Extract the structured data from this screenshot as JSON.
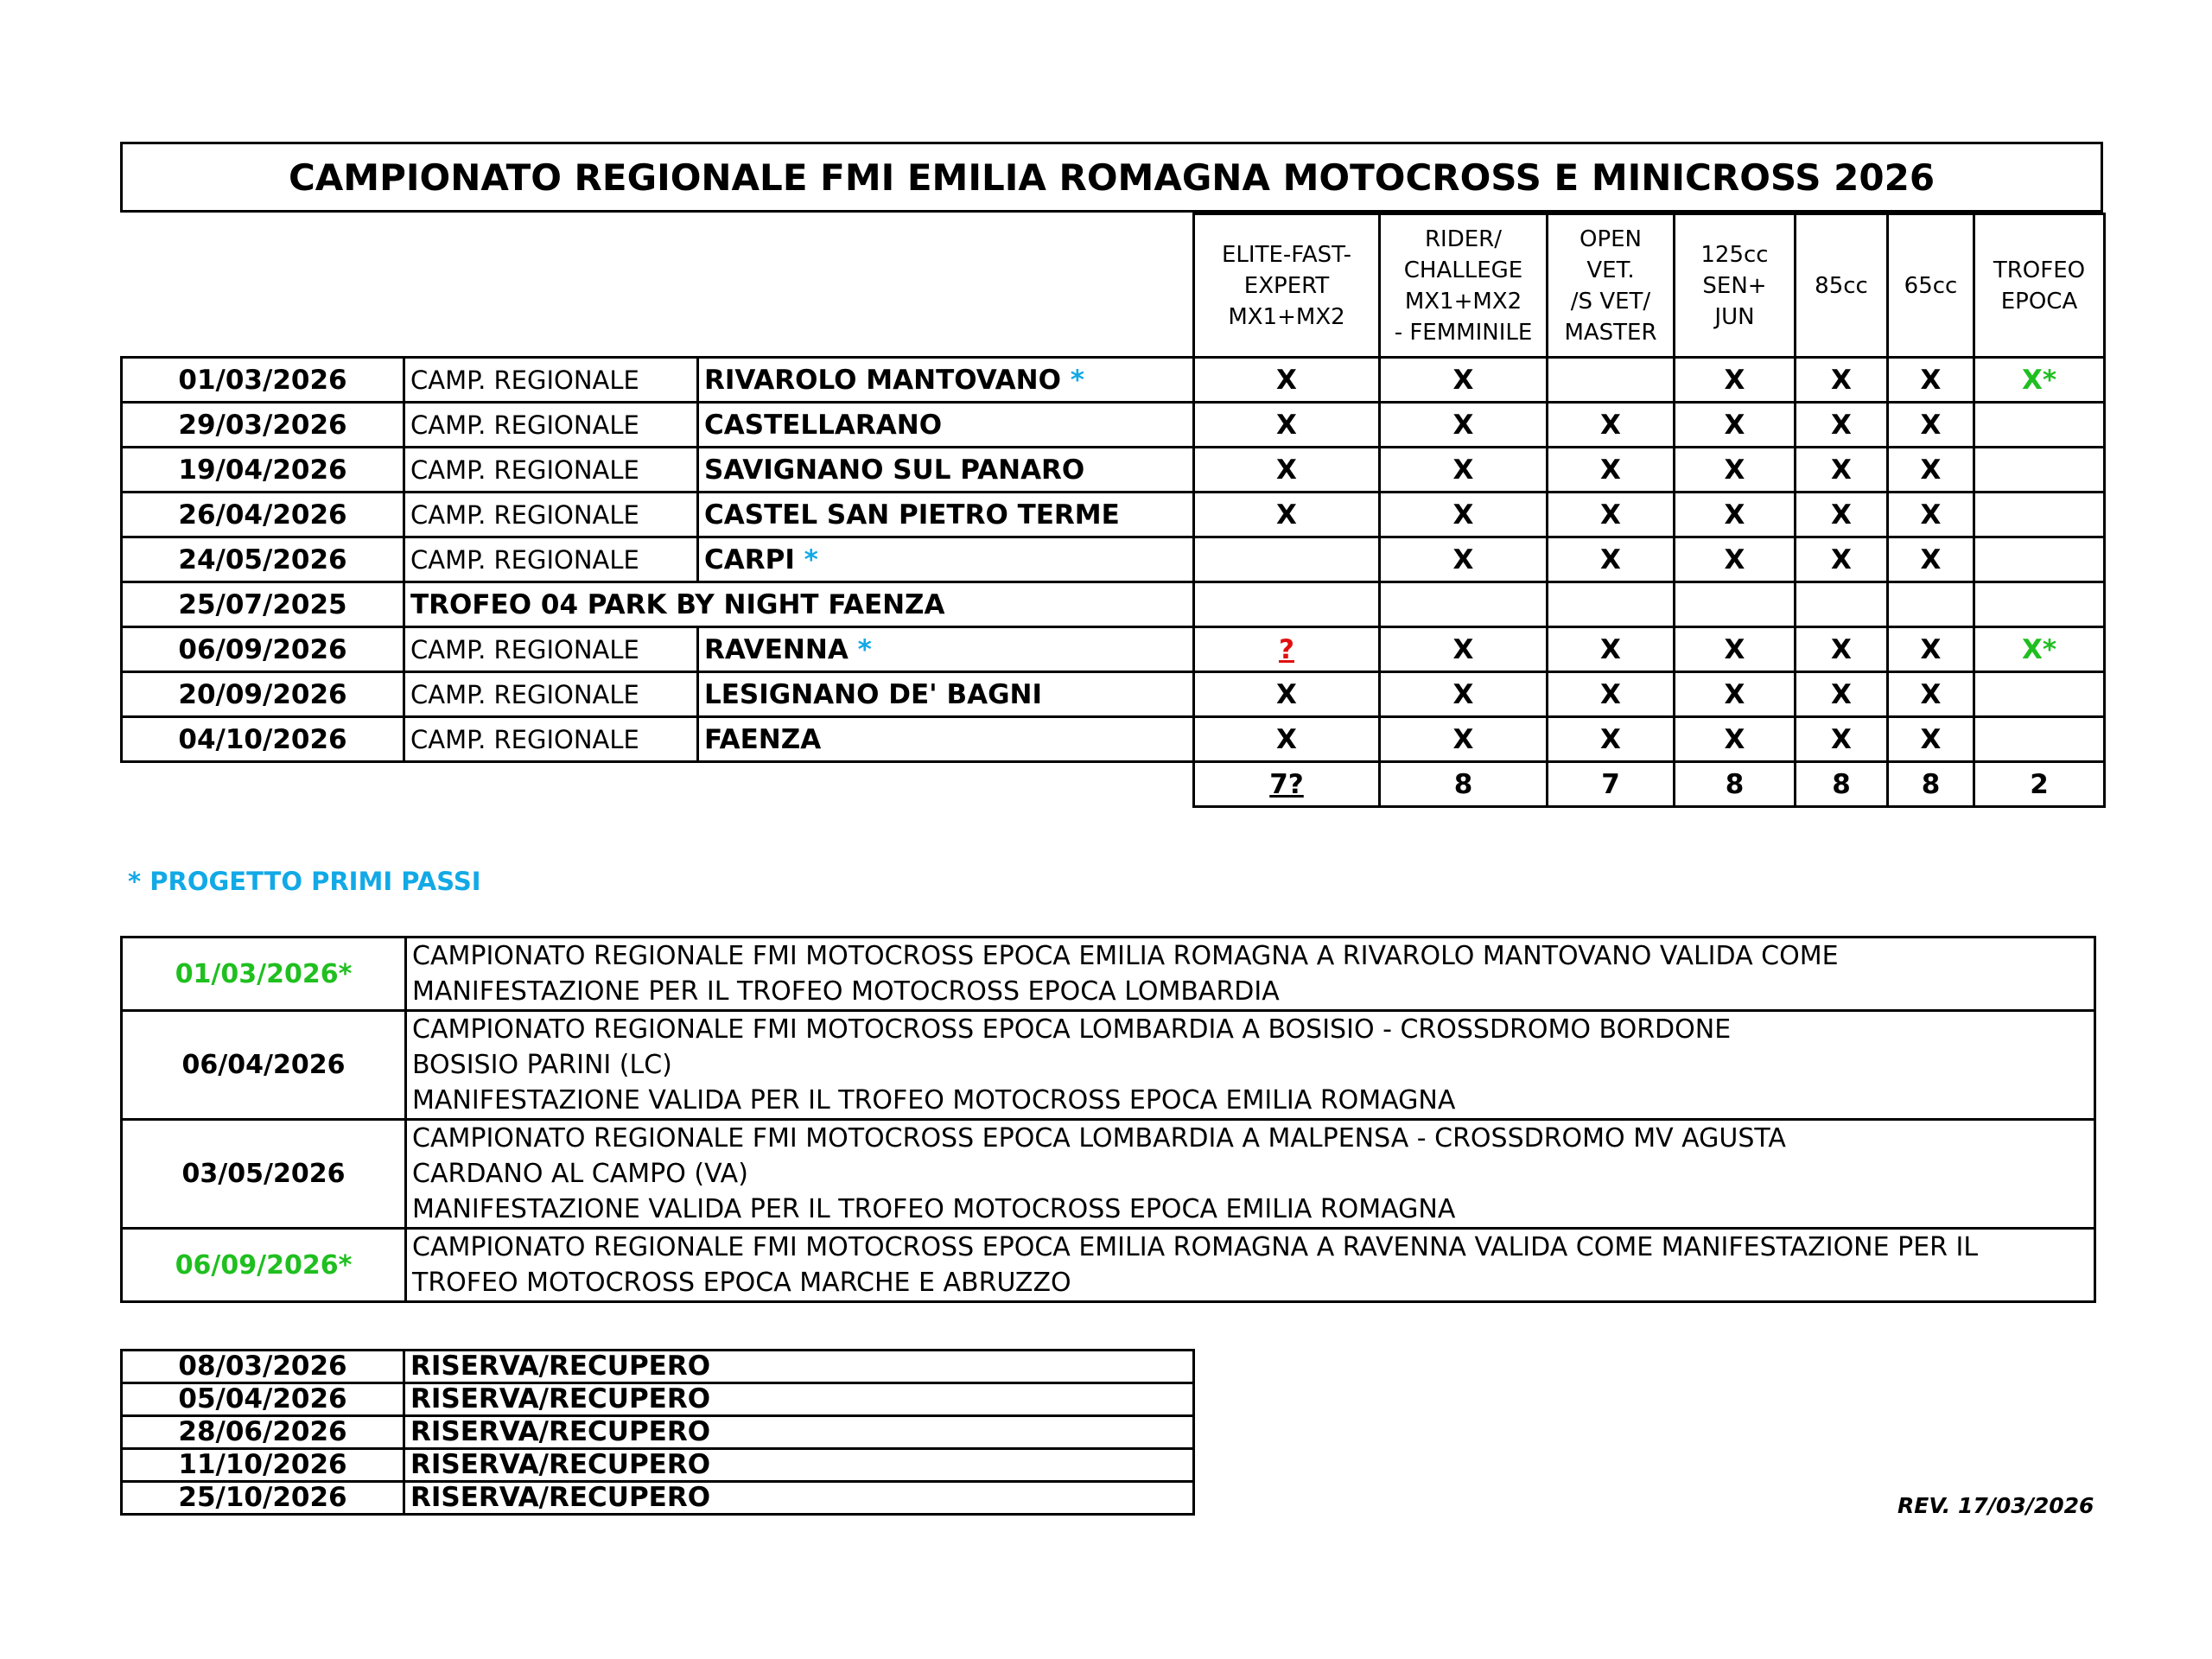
{
  "title": "CAMPIONATO REGIONALE FMI EMILIA ROMAGNA MOTOCROSS E MINICROSS 2026",
  "columns": [
    "ELITE-FAST-\nEXPERT\nMX1+MX2",
    "RIDER/\nCHALLEGE\nMX1+MX2\n- FEMMINILE",
    "OPEN\nVET.\n/S VET/\nMASTER",
    "125cc\nSEN+\nJUN",
    "85cc",
    "65cc",
    "TROFEO\nEPOCA"
  ],
  "events": [
    {
      "date": "01/03/2026",
      "type": "CAMP. REGIONALE",
      "venue": "RIVAROLO MANTOVANO",
      "star": "*",
      "marks": [
        "X",
        "X",
        "",
        "X",
        "X",
        "X",
        "X*"
      ]
    },
    {
      "date": "29/03/2026",
      "type": "CAMP. REGIONALE",
      "venue": "CASTELLARANO",
      "star": "",
      "marks": [
        "X",
        "X",
        "X",
        "X",
        "X",
        "X",
        ""
      ]
    },
    {
      "date": "19/04/2026",
      "type": "CAMP. REGIONALE",
      "venue": "SAVIGNANO SUL PANARO",
      "star": "",
      "marks": [
        "X",
        "X",
        "X",
        "X",
        "X",
        "X",
        ""
      ]
    },
    {
      "date": "26/04/2026",
      "type": "CAMP. REGIONALE",
      "venue": "CASTEL SAN PIETRO TERME",
      "star": "",
      "marks": [
        "X",
        "X",
        "X",
        "X",
        "X",
        "X",
        ""
      ]
    },
    {
      "date": "24/05/2026",
      "type": "CAMP. REGIONALE",
      "venue": "CARPI",
      "star": "*",
      "marks": [
        "",
        "X",
        "X",
        "X",
        "X",
        "X",
        ""
      ]
    },
    {
      "date": "25/07/2025",
      "type": "",
      "venue": "TROFEO 04 PARK BY NIGHT FAENZA",
      "star": "",
      "span": true,
      "marks": [
        "",
        "",
        "",
        "",
        "",
        "",
        ""
      ]
    },
    {
      "date": "06/09/2026",
      "type": "CAMP. REGIONALE",
      "venue": "RAVENNA",
      "star": "*",
      "marks": [
        "?",
        "X",
        "X",
        "X",
        "X",
        "X",
        "X*"
      ]
    },
    {
      "date": "20/09/2026",
      "type": "CAMP. REGIONALE",
      "venue": "LESIGNANO DE' BAGNI",
      "star": "",
      "marks": [
        "X",
        "X",
        "X",
        "X",
        "X",
        "X",
        ""
      ]
    },
    {
      "date": "04/10/2026",
      "type": "CAMP. REGIONALE",
      "venue": "FAENZA",
      "star": "",
      "marks": [
        "X",
        "X",
        "X",
        "X",
        "X",
        "X",
        ""
      ]
    }
  ],
  "totals": [
    "7?",
    "8",
    "7",
    "8",
    "8",
    "8",
    "2"
  ],
  "note": "* PROGETTO PRIMI PASSI",
  "epoca": [
    {
      "date": "01/03/2026*",
      "highlight": true,
      "text": "CAMPIONATO REGIONALE FMI MOTOCROSS EPOCA EMILIA ROMAGNA A RIVAROLO MANTOVANO VALIDA COME\nMANIFESTAZIONE PER IL TROFEO MOTOCROSS EPOCA LOMBARDIA"
    },
    {
      "date": "06/04/2026",
      "highlight": false,
      "text": "CAMPIONATO REGIONALE FMI MOTOCROSS EPOCA LOMBARDIA A BOSISIO - CROSSDROMO BORDONE\nBOSISIO PARINI (LC)\nMANIFESTAZIONE VALIDA PER IL TROFEO MOTOCROSS EPOCA EMILIA ROMAGNA"
    },
    {
      "date": "03/05/2026",
      "highlight": false,
      "text": "CAMPIONATO REGIONALE FMI MOTOCROSS EPOCA LOMBARDIA A MALPENSA - CROSSDROMO MV AGUSTA\nCARDANO AL CAMPO (VA)\nMANIFESTAZIONE VALIDA PER IL TROFEO MOTOCROSS EPOCA EMILIA ROMAGNA"
    },
    {
      "date": "06/09/2026*",
      "highlight": true,
      "text": "CAMPIONATO REGIONALE FMI MOTOCROSS EPOCA EMILIA ROMAGNA A RAVENNA VALIDA COME MANIFESTAZIONE PER IL\nTROFEO MOTOCROSS EPOCA MARCHE E ABRUZZO"
    }
  ],
  "reserve": [
    {
      "date": "08/03/2026",
      "label": "RISERVA/RECUPERO"
    },
    {
      "date": "05/04/2026",
      "label": "RISERVA/RECUPERO"
    },
    {
      "date": "28/06/2026",
      "label": "RISERVA/RECUPERO"
    },
    {
      "date": "11/10/2026",
      "label": "RISERVA/RECUPERO"
    },
    {
      "date": "25/10/2026",
      "label": "RISERVA/RECUPERO"
    }
  ],
  "revision": "REV. 17/03/2026",
  "colors": {
    "primi_passi": "#12a9e6",
    "epoca": "#1fbf1f",
    "uncertain": "#e01010"
  }
}
